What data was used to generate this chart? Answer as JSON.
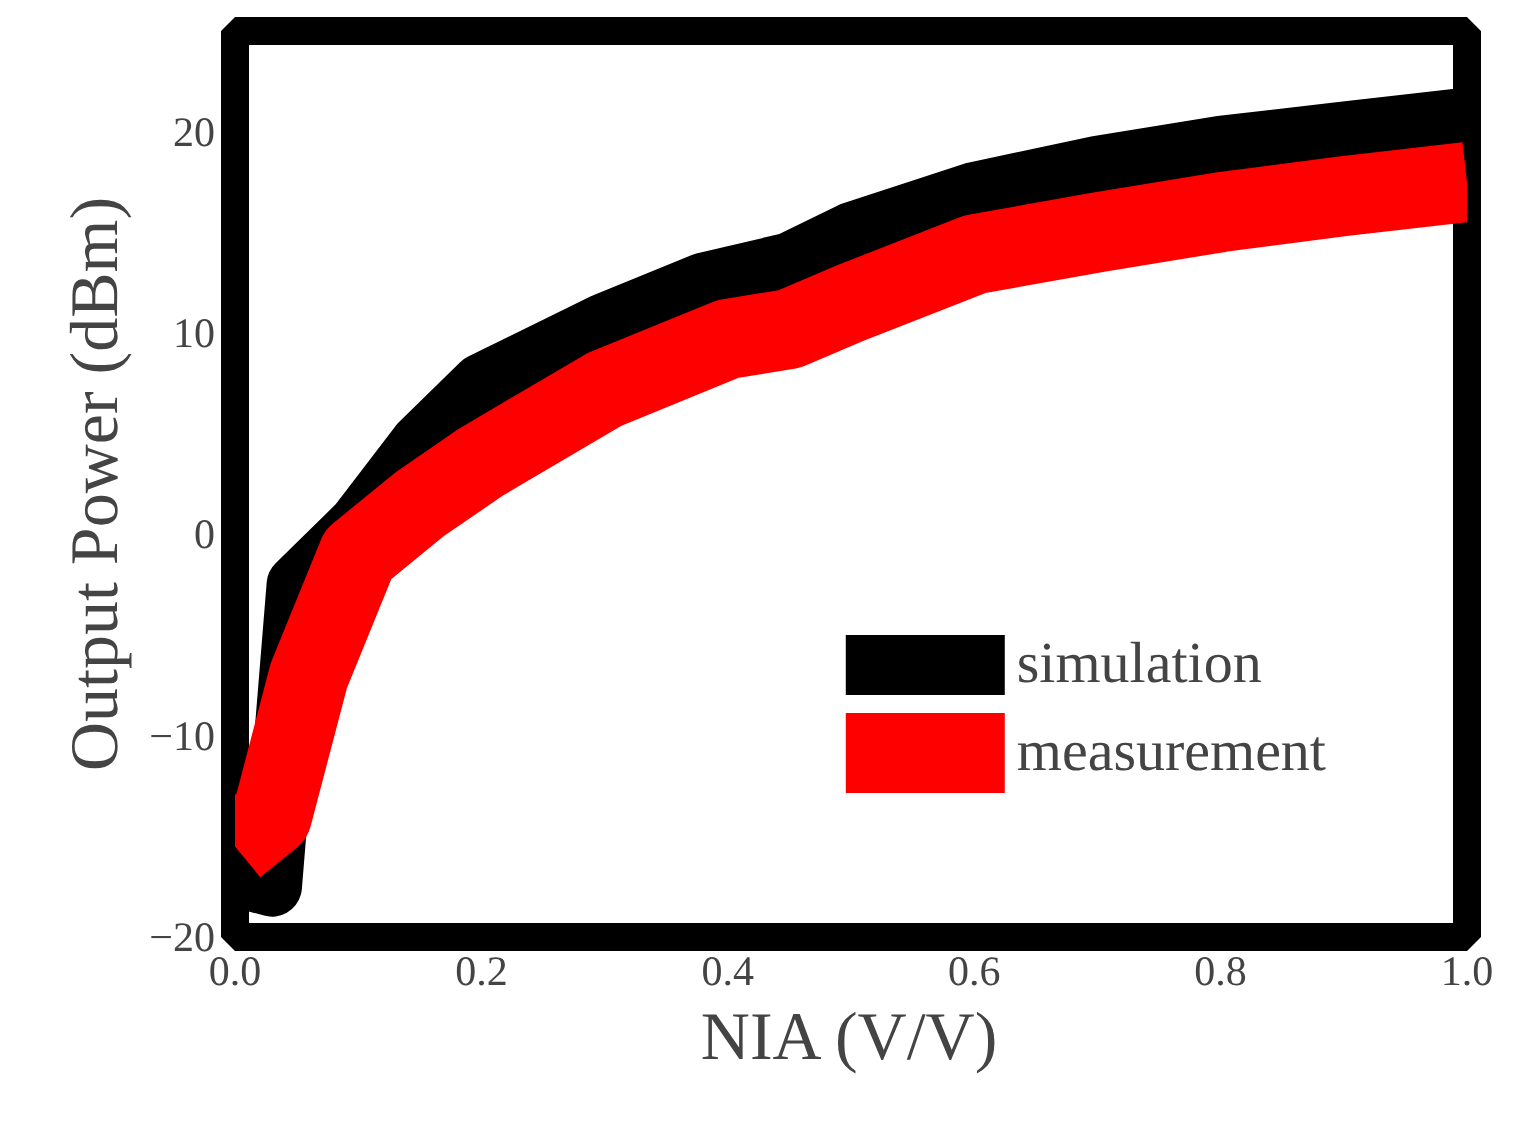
{
  "chart_data": {
    "type": "line",
    "xlabel": "NIA (V/V)",
    "ylabel": "Output Power (dBm)",
    "xlim": [
      0,
      1
    ],
    "xticks": [
      {
        "value": 0,
        "label": "0.0"
      },
      0.2,
      0.4,
      0.6,
      0.8,
      {
        "value": 1,
        "label": "1.0"
      }
    ],
    "ylim": [
      -20,
      25
    ],
    "yticks": [
      -20,
      -10,
      0,
      10,
      20
    ],
    "grid": false,
    "legend": "bottom right",
    "marker": "none",
    "line_style": "solid",
    "series": [
      {
        "name": "simulation",
        "color": "#000000",
        "x": [
          0,
          0.03,
          0.05,
          0.1,
          0.15,
          0.2,
          0.3,
          0.38,
          0.45,
          0.5,
          0.6,
          0.7,
          0.8,
          0.9,
          1.0
        ],
        "values": [
          -17,
          -17.5,
          -2.5,
          0.5,
          4.5,
          7.5,
          10.5,
          12.5,
          13.5,
          15,
          17,
          18.3,
          19.3,
          20,
          20.7
        ]
      },
      {
        "name": "measurement",
        "color": "#ff0000",
        "x": [
          0,
          0.03,
          0.06,
          0.1,
          0.15,
          0.2,
          0.3,
          0.4,
          0.45,
          0.5,
          0.6,
          0.7,
          0.8,
          0.9,
          1.0
        ],
        "values": [
          -15.5,
          -14,
          -7,
          -1,
          1.5,
          3.6,
          7.2,
          9.7,
          10.2,
          11.5,
          13.9,
          15,
          16,
          16.8,
          17.5
        ]
      }
    ]
  }
}
